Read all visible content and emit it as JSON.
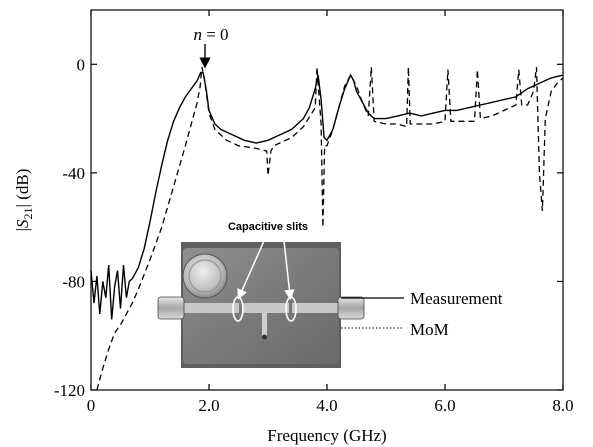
{
  "chart_data": {
    "type": "line",
    "xlabel": "Frequency (GHz)",
    "ylabel_prefix": "|",
    "ylabel_var": "S",
    "ylabel_sub": "21",
    "ylabel_suffix": "| (dB)",
    "xlim": [
      0,
      8
    ],
    "ylim": [
      -120,
      20
    ],
    "x_ticks": [
      {
        "value": 0,
        "label": "0"
      },
      {
        "value": 2,
        "label": "2.0"
      },
      {
        "value": 4,
        "label": "4.0"
      },
      {
        "value": 6,
        "label": "6.0"
      },
      {
        "value": 8,
        "label": "8.0"
      }
    ],
    "y_ticks": [
      {
        "value": 0,
        "label": "0"
      },
      {
        "value": -40,
        "label": "-40"
      },
      {
        "value": -80,
        "label": "-80"
      },
      {
        "value": -120,
        "label": "-120"
      }
    ],
    "grid": false,
    "series": [
      {
        "name": "Measurement",
        "style": "solid",
        "x": [
          0.0,
          0.05,
          0.1,
          0.15,
          0.2,
          0.25,
          0.3,
          0.35,
          0.4,
          0.45,
          0.5,
          0.55,
          0.6,
          0.65,
          0.7,
          0.75,
          0.8,
          0.9,
          1.0,
          1.1,
          1.2,
          1.3,
          1.4,
          1.5,
          1.6,
          1.7,
          1.8,
          1.86,
          1.9,
          1.95,
          2.0,
          2.1,
          2.2,
          2.4,
          2.6,
          2.8,
          3.0,
          3.2,
          3.4,
          3.6,
          3.7,
          3.8,
          3.85,
          3.9,
          3.95,
          4.0,
          4.1,
          4.2,
          4.3,
          4.4,
          4.45,
          4.5,
          4.6,
          4.7,
          4.8,
          5.0,
          5.2,
          5.4,
          5.6,
          5.8,
          6.0,
          6.2,
          6.4,
          6.6,
          6.8,
          7.0,
          7.2,
          7.4,
          7.6,
          7.8,
          8.0
        ],
        "y": [
          -76,
          -88,
          -78,
          -92,
          -80,
          -86,
          -74,
          -94,
          -82,
          -76,
          -90,
          -74,
          -86,
          -80,
          -79,
          -77,
          -75,
          -68,
          -58,
          -47,
          -37,
          -28,
          -21,
          -16,
          -12,
          -9,
          -6,
          -3,
          -3,
          -9,
          -17,
          -22,
          -24,
          -26,
          -28,
          -29,
          -28,
          -26,
          -24,
          -20,
          -16,
          -9,
          -4,
          -13,
          -27,
          -28,
          -24,
          -16,
          -9,
          -4,
          -6,
          -10,
          -14,
          -18,
          -20,
          -20,
          -19,
          -18,
          -19,
          -18,
          -17,
          -17,
          -16,
          -15,
          -14,
          -13,
          -12,
          -9,
          -7,
          -5,
          -4
        ]
      },
      {
        "name": "MoM",
        "style": "dashed",
        "x": [
          0.1,
          0.2,
          0.3,
          0.4,
          0.5,
          0.6,
          0.7,
          0.8,
          1.0,
          1.2,
          1.4,
          1.6,
          1.7,
          1.8,
          1.85,
          1.88,
          1.92,
          2.0,
          2.1,
          2.3,
          2.5,
          2.8,
          2.98,
          3.0,
          3.05,
          3.1,
          3.2,
          3.4,
          3.6,
          3.8,
          3.83,
          3.86,
          3.9,
          3.93,
          3.96,
          4.0,
          4.1,
          4.2,
          4.3,
          4.4,
          4.5,
          4.6,
          4.7,
          4.75,
          4.8,
          5.0,
          5.2,
          5.35,
          5.38,
          5.41,
          5.6,
          5.8,
          6.0,
          6.05,
          6.1,
          6.3,
          6.5,
          6.55,
          6.6,
          6.8,
          7.0,
          7.2,
          7.25,
          7.3,
          7.4,
          7.5,
          7.55,
          7.6,
          7.65,
          7.7,
          7.8,
          7.9,
          8.0
        ],
        "y": [
          -120,
          -112,
          -105,
          -99,
          -96,
          -92,
          -88,
          -83,
          -72,
          -60,
          -45,
          -30,
          -22,
          -14,
          -8,
          -1,
          -5,
          -18,
          -24,
          -28,
          -30,
          -31,
          -32,
          -41,
          -32,
          -30,
          -29,
          -27,
          -23,
          -16,
          -1,
          -10,
          -22,
          -60,
          -30,
          -30,
          -24,
          -16,
          -8,
          -4,
          -8,
          -14,
          -19,
          -1,
          -21,
          -22,
          -22,
          -23,
          -1,
          -22,
          -22,
          -22,
          -21,
          -2,
          -21,
          -21,
          -21,
          -2,
          -20,
          -19,
          -17,
          -15,
          -2,
          -15,
          -15,
          -10,
          -1,
          -40,
          -54,
          -20,
          -10,
          -7,
          -5
        ]
      }
    ],
    "annotations": {
      "peak_label_italic": "n",
      "peak_label_rest": " = 0",
      "peak_x": 1.9,
      "capacitive_slits": "Capacitive slits",
      "legend_measurement": "Measurement",
      "legend_mom": "MoM"
    }
  }
}
